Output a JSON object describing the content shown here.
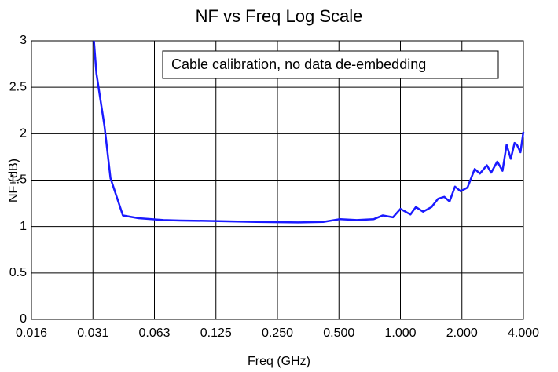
{
  "chart_data": {
    "type": "line",
    "title": "NF vs Freq Log Scale",
    "x_label": "Freq (GHz)",
    "y_label": "NF (dB)",
    "annotation": "Cable calibration, no data de-embedding",
    "xscale": "log",
    "grid": true,
    "xlim": [
      0.015625,
      4
    ],
    "xticks": [
      {
        "value": 0.015625,
        "label": "0.016"
      },
      {
        "value": 0.03125,
        "label": "0.031"
      },
      {
        "value": 0.0625,
        "label": "0.063"
      },
      0.125,
      {
        "value": 0.25,
        "label": "0.250"
      },
      {
        "value": 0.5,
        "label": "0.500"
      },
      {
        "value": 1,
        "label": "1.000"
      },
      {
        "value": 2,
        "label": "2.000"
      },
      {
        "value": 4,
        "label": "4.000"
      }
    ],
    "ylim": [
      0,
      3
    ],
    "yticks": [
      0,
      0.5,
      1,
      1.5,
      2,
      2.5,
      3
    ],
    "series": [
      {
        "name": "NF",
        "color": "#1a1aff",
        "x": [
          0.0316,
          0.0325,
          0.0356,
          0.0381,
          0.0438,
          0.0522,
          0.0693,
          0.0838,
          0.1225,
          0.197,
          0.316,
          0.419,
          0.506,
          0.611,
          0.741,
          0.82,
          0.92,
          1.0,
          1.12,
          1.19,
          1.29,
          1.42,
          1.53,
          1.64,
          1.74,
          1.85,
          1.97,
          2.13,
          2.31,
          2.45,
          2.65,
          2.78,
          2.98,
          3.16,
          3.31,
          3.47,
          3.62,
          3.72,
          3.87,
          4.0
        ],
        "values": [
          3.0,
          2.65,
          2.08,
          1.52,
          1.12,
          1.09,
          1.07,
          1.065,
          1.06,
          1.05,
          1.045,
          1.05,
          1.08,
          1.07,
          1.08,
          1.12,
          1.1,
          1.19,
          1.13,
          1.21,
          1.16,
          1.21,
          1.3,
          1.32,
          1.27,
          1.43,
          1.38,
          1.42,
          1.62,
          1.57,
          1.66,
          1.58,
          1.7,
          1.6,
          1.88,
          1.73,
          1.9,
          1.88,
          1.8,
          2.02
        ]
      }
    ]
  }
}
